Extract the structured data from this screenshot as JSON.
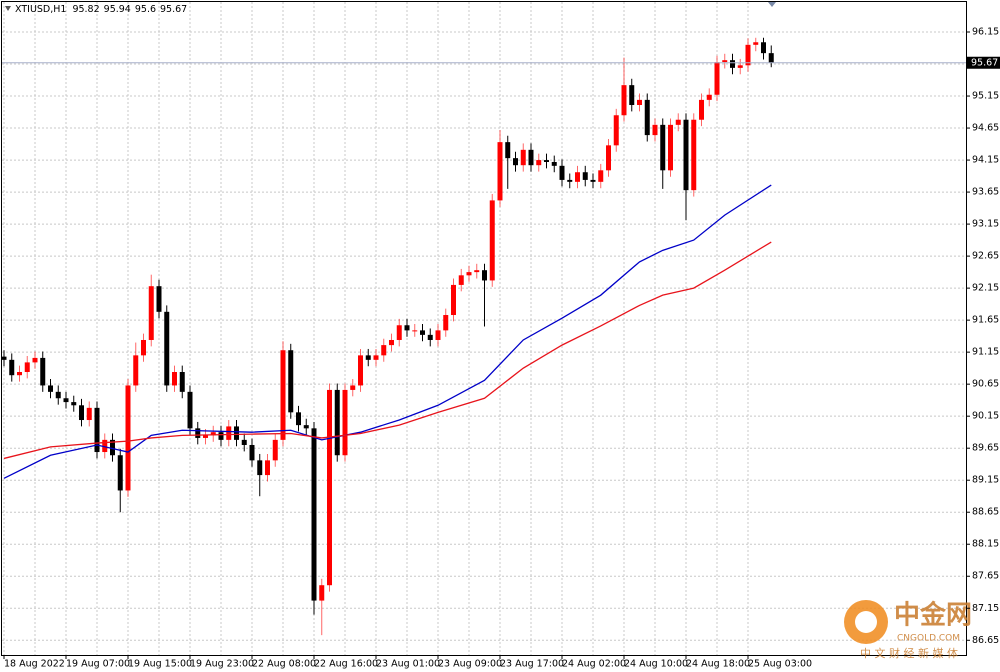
{
  "chart_data": {
    "type": "candlestick",
    "symbol": "XTIUSD,H1",
    "categories": [
      "18 Aug 2022",
      null,
      null,
      null,
      null,
      null,
      null,
      null,
      "19 Aug 07:00",
      null,
      null,
      null,
      null,
      null,
      null,
      null,
      "19 Aug 15:00",
      null,
      null,
      null,
      null,
      null,
      null,
      null,
      "19 Aug 23:00",
      null,
      null,
      null,
      null,
      null,
      null,
      null,
      "22 Aug 08:00",
      null,
      null,
      null,
      null,
      null,
      null,
      null,
      "22 Aug 16:00",
      null,
      null,
      null,
      null,
      null,
      null,
      null,
      "23 Aug 01:00",
      null,
      null,
      null,
      null,
      null,
      null,
      null,
      "23 Aug 09:00",
      null,
      null,
      null,
      null,
      null,
      null,
      null,
      "23 Aug 17:00",
      null,
      null,
      null,
      null,
      null,
      null,
      null,
      "24 Aug 02:00",
      null,
      null,
      null,
      null,
      null,
      null,
      null,
      "24 Aug 10:00",
      null,
      null,
      null,
      null,
      null,
      null,
      null,
      "24 Aug 18:00",
      null,
      null,
      null,
      null,
      null,
      null,
      null,
      "25 Aug 03:00",
      null,
      null,
      null
    ],
    "open": [
      91.08,
      91.03,
      90.79,
      90.84,
      90.99,
      91.06,
      90.63,
      90.53,
      90.43,
      90.37,
      90.32,
      90.09,
      90.28,
      89.59,
      89.78,
      89.54,
      88.99,
      90.63,
      91.1,
      91.34,
      92.18,
      91.78,
      90.63,
      90.84,
      90.53,
      89.96,
      89.81,
      89.85,
      89.9,
      89.78,
      89.99,
      89.78,
      89.7,
      89.46,
      89.23,
      89.46,
      89.78,
      91.18,
      90.21,
      90.01,
      89.96,
      87.27,
      87.51,
      90.56,
      89.54,
      90.56,
      90.63,
      91.1,
      91.03,
      91.1,
      91.26,
      91.34,
      91.57,
      91.49,
      91.49,
      91.42,
      91.34,
      91.49,
      91.73,
      92.2,
      92.35,
      92.4,
      92.43,
      92.27,
      93.52,
      94.43,
      94.18,
      94.07,
      94.31,
      94.07,
      94.15,
      94.12,
      94.06,
      93.84,
      93.81,
      93.96,
      93.84,
      93.81,
      93.99,
      94.38,
      94.85,
      95.32,
      95.01,
      95.09,
      94.54,
      94.7,
      93.99,
      94.7,
      94.78,
      93.68,
      94.78,
      95.09,
      95.17,
      95.68,
      95.71,
      95.59,
      95.63,
      95.95,
      95.99,
      95.82
    ],
    "high": [
      91.18,
      91.13,
      90.94,
      91.09,
      91.16,
      91.16,
      90.73,
      90.63,
      90.53,
      90.47,
      90.42,
      90.38,
      90.38,
      89.88,
      89.88,
      89.64,
      90.73,
      91.3,
      91.44,
      92.36,
      92.28,
      91.88,
      90.94,
      90.94,
      90.63,
      90.06,
      89.95,
      90.0,
      90.0,
      90.09,
      90.09,
      89.88,
      89.8,
      89.56,
      89.56,
      89.88,
      91.32,
      91.28,
      90.31,
      90.11,
      90.06,
      87.61,
      90.66,
      90.66,
      90.66,
      90.73,
      91.2,
      91.2,
      91.2,
      91.36,
      91.44,
      91.67,
      91.67,
      91.59,
      91.59,
      91.52,
      91.59,
      91.83,
      92.3,
      92.45,
      92.5,
      92.53,
      92.53,
      93.62,
      94.62,
      94.53,
      94.28,
      94.41,
      94.41,
      94.25,
      94.25,
      94.22,
      94.16,
      93.94,
      94.06,
      94.06,
      93.94,
      94.09,
      94.48,
      94.95,
      95.75,
      95.42,
      95.19,
      95.19,
      94.8,
      94.8,
      94.8,
      94.88,
      94.88,
      94.88,
      95.19,
      95.27,
      95.78,
      95.81,
      95.81,
      95.73,
      96.05,
      96.06,
      96.06,
      95.94
    ],
    "low": [
      90.93,
      90.69,
      90.69,
      90.74,
      90.89,
      90.53,
      90.43,
      90.33,
      90.27,
      90.22,
      89.99,
      89.99,
      89.49,
      89.49,
      89.44,
      88.65,
      88.89,
      90.53,
      91.0,
      91.24,
      91.68,
      90.53,
      90.53,
      90.43,
      89.86,
      89.71,
      89.71,
      89.75,
      89.68,
      89.68,
      89.68,
      89.6,
      89.36,
      88.9,
      89.13,
      89.36,
      89.68,
      90.11,
      89.91,
      89.86,
      87.05,
      86.73,
      87.41,
      89.44,
      89.44,
      90.46,
      90.53,
      90.93,
      90.93,
      91.0,
      91.16,
      91.24,
      91.39,
      91.39,
      91.32,
      91.24,
      91.24,
      91.39,
      91.63,
      92.1,
      92.25,
      92.3,
      91.55,
      92.17,
      93.42,
      93.7,
      93.97,
      93.97,
      93.97,
      93.97,
      94.02,
      93.96,
      93.74,
      93.71,
      93.71,
      93.74,
      93.71,
      93.71,
      93.89,
      94.28,
      94.75,
      94.91,
      94.91,
      94.44,
      94.44,
      93.7,
      93.89,
      94.6,
      93.21,
      93.58,
      94.68,
      94.99,
      95.07,
      95.58,
      95.49,
      95.49,
      95.53,
      95.85,
      95.72,
      95.6
    ],
    "close": [
      91.03,
      90.79,
      90.84,
      90.99,
      91.06,
      90.63,
      90.53,
      90.43,
      90.37,
      90.32,
      90.09,
      90.28,
      89.59,
      89.78,
      89.54,
      88.99,
      90.63,
      91.1,
      91.34,
      92.18,
      91.78,
      90.63,
      90.84,
      90.53,
      89.96,
      89.81,
      89.85,
      89.9,
      89.78,
      89.99,
      89.78,
      89.7,
      89.46,
      89.23,
      89.46,
      89.78,
      91.18,
      90.21,
      90.01,
      89.96,
      87.27,
      87.51,
      90.56,
      89.54,
      90.56,
      90.63,
      91.1,
      91.03,
      91.1,
      91.26,
      91.34,
      91.57,
      91.49,
      91.49,
      91.42,
      91.34,
      91.49,
      91.73,
      92.2,
      92.35,
      92.4,
      92.43,
      92.27,
      93.52,
      94.43,
      94.18,
      94.07,
      94.31,
      94.07,
      94.15,
      94.12,
      94.06,
      93.84,
      93.81,
      93.96,
      93.84,
      93.81,
      93.99,
      94.38,
      94.85,
      95.32,
      95.01,
      95.09,
      94.54,
      94.7,
      93.99,
      94.7,
      94.78,
      93.68,
      94.78,
      95.09,
      95.17,
      95.68,
      95.71,
      95.59,
      95.63,
      95.95,
      95.99,
      95.82,
      95.67
    ],
    "up_color": "#ff0000",
    "down_color": "#000000",
    "series": [
      {
        "color": "#0000c8",
        "x": [
          0,
          6,
          12,
          16,
          19,
          23,
          32,
          37,
          41,
          46,
          51,
          56,
          62,
          67,
          72,
          77,
          82,
          85,
          89,
          93,
          99
        ],
        "values": [
          89.18,
          89.54,
          89.7,
          89.59,
          89.85,
          89.93,
          89.9,
          89.93,
          89.78,
          89.9,
          90.09,
          90.32,
          90.71,
          91.34,
          91.68,
          92.04,
          92.56,
          92.74,
          92.9,
          93.29,
          93.76
        ]
      },
      {
        "color": "#e8141c",
        "x": [
          0,
          6,
          12,
          16,
          19,
          23,
          32,
          37,
          41,
          46,
          51,
          56,
          62,
          67,
          72,
          77,
          82,
          85,
          89,
          93,
          99
        ],
        "values": [
          89.49,
          89.67,
          89.73,
          89.76,
          89.81,
          89.85,
          89.87,
          89.88,
          89.81,
          89.88,
          90.01,
          90.21,
          90.43,
          90.9,
          91.26,
          91.56,
          91.88,
          92.04,
          92.15,
          92.43,
          92.87
        ]
      }
    ],
    "ylim": [
      86.42,
      96.65
    ],
    "yticks": [
      96.15,
      95.65,
      95.15,
      94.65,
      94.15,
      93.65,
      93.15,
      92.65,
      92.15,
      91.65,
      91.15,
      90.65,
      90.15,
      89.65,
      89.15,
      88.65,
      88.15,
      87.65,
      87.15,
      86.65
    ],
    "grid": true,
    "watermark": {
      "brand": "中金网",
      "site": "CNGOLD.COM",
      "slogan": "中 文 财 经 新 媒 体"
    }
  }
}
